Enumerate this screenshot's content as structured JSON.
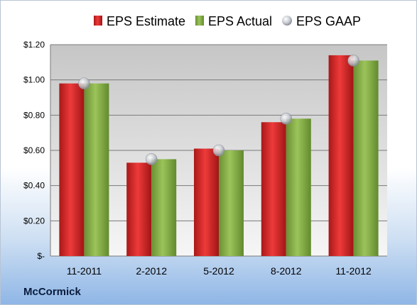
{
  "brand": "McCormick",
  "colors": {
    "estimate": "#d42a2a",
    "actual": "#8bb34a",
    "gaap": "#c4c8d0"
  },
  "chart_data": {
    "type": "bar",
    "categories": [
      "11-2011",
      "2-2012",
      "5-2012",
      "8-2012",
      "11-2012"
    ],
    "series": [
      {
        "name": "EPS Estimate",
        "kind": "bar",
        "values": [
          0.98,
          0.53,
          0.61,
          0.76,
          1.14
        ]
      },
      {
        "name": "EPS Actual",
        "kind": "bar",
        "values": [
          0.98,
          0.55,
          0.6,
          0.78,
          1.11
        ]
      },
      {
        "name": "EPS GAAP",
        "kind": "marker",
        "values": [
          0.98,
          0.55,
          0.6,
          0.78,
          1.11
        ]
      }
    ],
    "y_ticks": [
      {
        "value": 0,
        "label": "$-"
      },
      {
        "value": 0.2,
        "label": "$0.20"
      },
      {
        "value": 0.4,
        "label": "$0.40"
      },
      {
        "value": 0.6,
        "label": "$0.60"
      },
      {
        "value": 0.8,
        "label": "$0.80"
      },
      {
        "value": 1.0,
        "label": "$1.00"
      },
      {
        "value": 1.2,
        "label": "$1.20"
      }
    ],
    "ylim": [
      0,
      1.2
    ],
    "grid": true,
    "legend_position": "top-center"
  }
}
